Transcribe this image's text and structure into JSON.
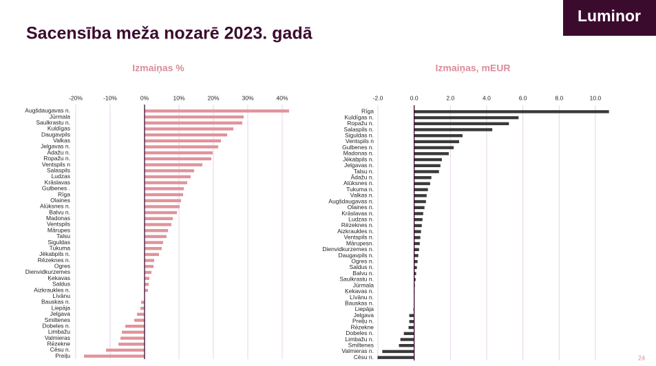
{
  "header": {
    "title": "Sacensība meža nozarē 2023. gadā",
    "logo": "Luminor"
  },
  "page_number": "24",
  "chart_data": [
    {
      "type": "bar",
      "orientation": "horizontal",
      "title": "Izmaiņas %",
      "color": "#e0939c",
      "grid": true,
      "categories": [
        "Augšdaugavas n.",
        "Jūrmala",
        "Saulkrastu n.",
        "Kuldīgas",
        "Daugavpils",
        "Valkas",
        "Jelgavas n.",
        "Ādažu n.",
        "Ropažu n.",
        "Ventspils n",
        "Salaspils",
        "Ludzas",
        "Krāslavas",
        "Gulbenes .",
        "Rīga",
        "Olaines",
        "Alūksnes n.",
        "Balvu n.",
        "Madonas",
        "Ventspils",
        "Mārupes",
        "Talsu",
        "Siguldas",
        "Tukuma",
        "Jēkabpils n.",
        "Rēzeknes n.",
        "Ogres",
        "Dienvidkurzemes",
        "Ķekavas",
        "Saldus",
        "Aizkraukles n.",
        "Līvānu",
        "Bauskas n.",
        "Liepāja",
        "Jelgava",
        "Smiltenes",
        "Dobeles n.",
        "Limbažu",
        "Valmieras",
        "Rēzekne",
        "Cēsu n.",
        "Preiļu"
      ],
      "values": [
        42,
        28.8,
        28.4,
        25.8,
        24,
        22.2,
        21.4,
        19.8,
        19.4,
        16.8,
        14.4,
        13.4,
        12.4,
        11.4,
        11.2,
        10.6,
        10.2,
        9.4,
        8.2,
        7.8,
        6.8,
        6.4,
        5.4,
        5,
        4.2,
        2.8,
        2.6,
        2,
        1.4,
        1.2,
        1,
        0,
        -1,
        -1.2,
        -2.2,
        -3,
        -5.6,
        -6.6,
        -7,
        -7.6,
        -11.2,
        -17.6
      ],
      "xlim": [
        -20,
        42
      ],
      "xticks": [
        {
          "value": -20,
          "label": "-20%"
        },
        {
          "value": -10,
          "label": "-10%"
        },
        {
          "value": 0,
          "label": "0%"
        },
        {
          "value": 10,
          "label": "10%"
        },
        {
          "value": 20,
          "label": "20%"
        },
        {
          "value": 30,
          "label": "30%"
        },
        {
          "value": 40,
          "label": "40%"
        }
      ]
    },
    {
      "type": "bar",
      "orientation": "horizontal",
      "title": "Izmaiņas, mEUR",
      "color": "#3a3a3a",
      "grid": true,
      "categories": [
        "Rīga",
        "Kuldīgas n.",
        "Ropažu n.",
        "Salaspils n.",
        "Siguldas n.",
        "Ventspils n",
        "Gulbenes n.",
        "Madonas n.",
        "Jēkabpils n.",
        "Jelgavas n.",
        "Talsu n.",
        "Ādažu n.",
        "Alūksnes n.",
        "Tukuma n.",
        "Valkas n.",
        "Augšdaugavas n.",
        "Olaines n.",
        "Krāslavas n.",
        "Ludzas n.",
        "Rēzeknes n.",
        "Aizkraukles n.",
        "Ventspils n.",
        "Mārupesn.",
        "Dienvidkurzemes n.",
        "Daugavpils n.",
        "Ogres n.",
        "Saldus n.",
        "Balvu n.",
        "Saulkrastu n.",
        "Jūrmala",
        "Ķekavas n.",
        "Līvānu n.",
        "Bauskas n.",
        "Liepāja",
        "Jelgava",
        "Preiļu n.",
        "Rēzekne",
        "Dobeles n.",
        "Limbažu n.",
        "Smiltenes",
        "Valmieras n.",
        "Cēsu n."
      ],
      "values": [
        10.75,
        5.76,
        5.23,
        4.31,
        2.67,
        2.48,
        2.18,
        1.91,
        1.53,
        1.45,
        1.37,
        0.95,
        0.88,
        0.76,
        0.69,
        0.65,
        0.57,
        0.5,
        0.46,
        0.42,
        0.38,
        0.34,
        0.31,
        0.27,
        0.23,
        0.19,
        0.15,
        0.11,
        0.08,
        0.04,
        0.02,
        0.01,
        -0.02,
        -0.04,
        -0.27,
        -0.27,
        -0.31,
        -0.57,
        -0.76,
        -0.84,
        -1.76,
        -2.02
      ],
      "xlim": [
        -2,
        10.8
      ],
      "xticks": [
        {
          "value": -2,
          "label": "-2.0"
        },
        {
          "value": 0,
          "label": "0.0"
        },
        {
          "value": 2,
          "label": "2.0"
        },
        {
          "value": 4,
          "label": "4.0"
        },
        {
          "value": 6,
          "label": "6.0"
        },
        {
          "value": 8,
          "label": "8.0"
        },
        {
          "value": 10,
          "label": "10.0"
        }
      ]
    }
  ]
}
